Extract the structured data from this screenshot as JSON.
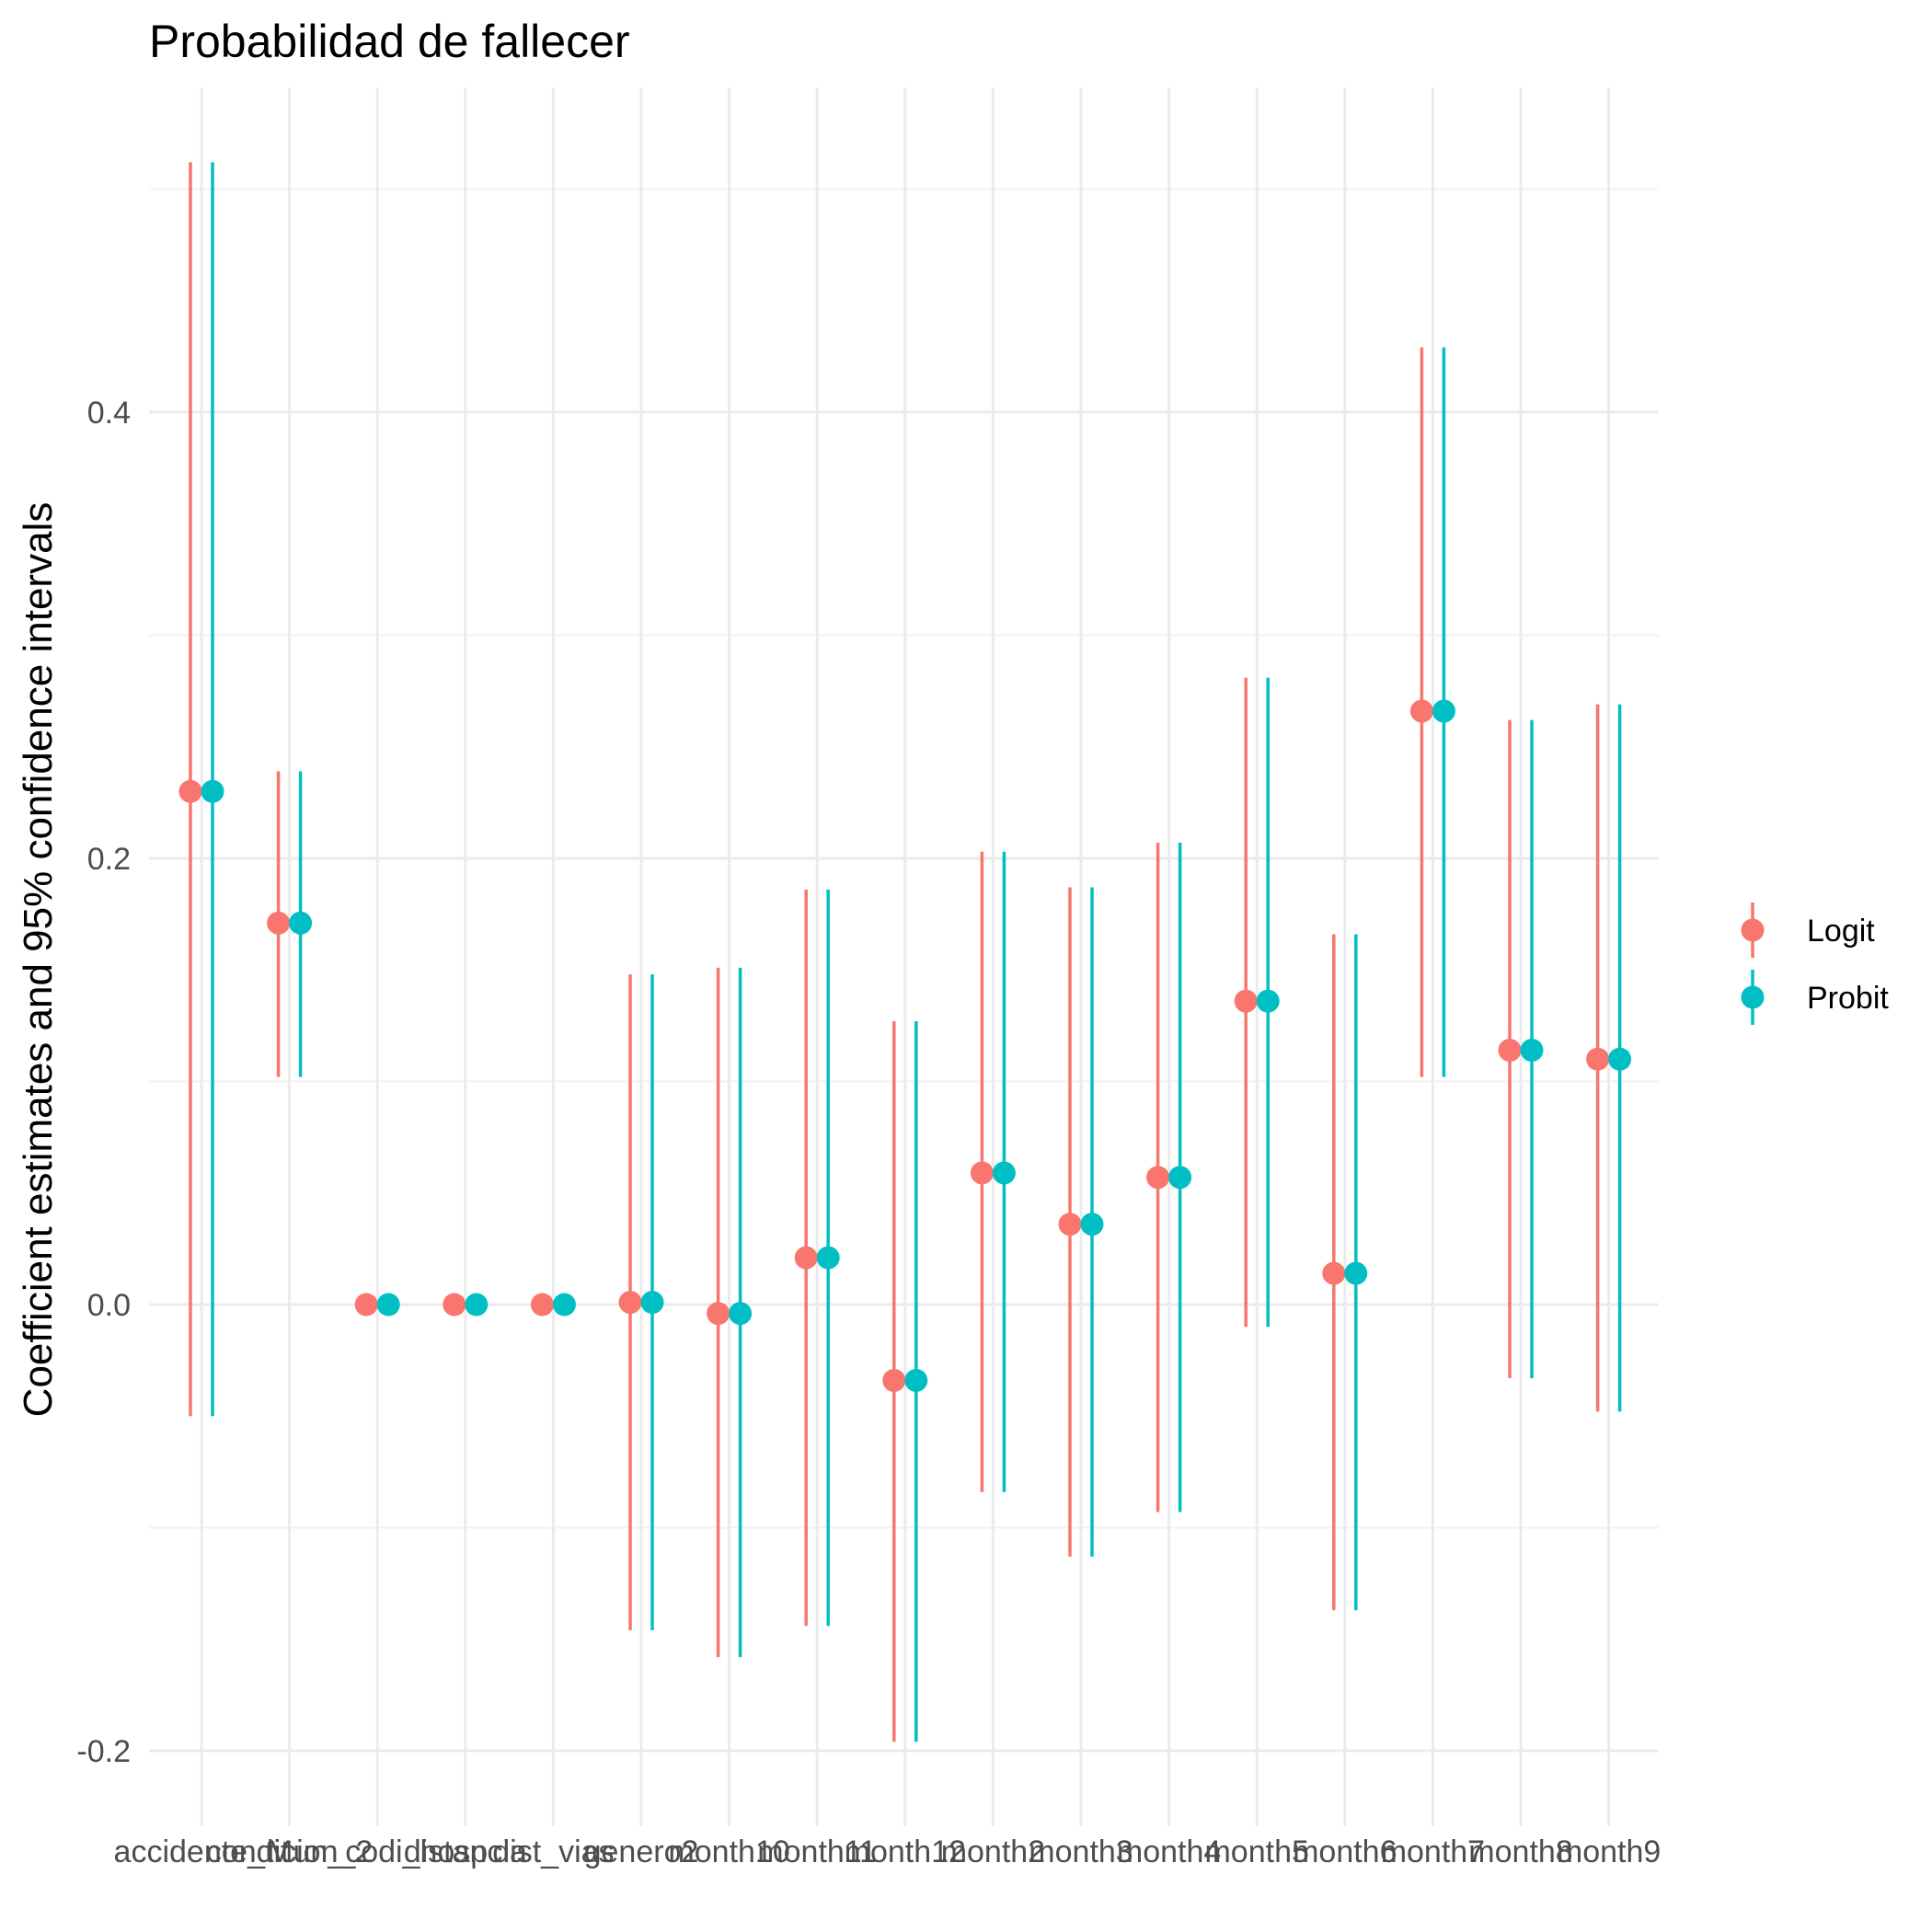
{
  "chart_data": {
    "type": "scatter",
    "subtype": "coefficient-plot-with-error-bars",
    "title": "Probabilidad de fallecer",
    "xlabel": "",
    "ylabel": "Coefficient estimates and 95% confidence intervals",
    "ylim": [
      -0.23,
      0.53
    ],
    "y_ticks": [
      -0.2,
      0.0,
      0.2,
      0.4
    ],
    "y_tick_labels": [
      "-0.2",
      "0.0",
      "0.2",
      "0.4"
    ],
    "grid": true,
    "legend_position": "right",
    "categories": [
      "accidente_tit",
      "condicion_2",
      "Mun_codi_hosp",
      "distancia",
      "dist_vias",
      "genero2",
      "month10",
      "month11",
      "month12",
      "month2",
      "month3",
      "month4",
      "month5",
      "month6",
      "month7",
      "month8",
      "month9"
    ],
    "series": [
      {
        "name": "Logit",
        "color": "#f8766d",
        "values": [
          0.23,
          0.171,
          0.0,
          0.0,
          0.0,
          0.001,
          -0.004,
          0.021,
          -0.034,
          0.059,
          0.036,
          0.057,
          0.136,
          0.014,
          0.266,
          0.114,
          0.11
        ],
        "lower": [
          -0.05,
          0.102,
          0.0,
          0.0,
          0.0,
          -0.146,
          -0.158,
          -0.144,
          -0.196,
          -0.084,
          -0.113,
          -0.093,
          -0.01,
          -0.137,
          0.102,
          -0.033,
          -0.048
        ],
        "upper": [
          0.512,
          0.239,
          0.0,
          0.0,
          0.0,
          0.148,
          0.151,
          0.186,
          0.127,
          0.203,
          0.187,
          0.207,
          0.281,
          0.166,
          0.429,
          0.262,
          0.269
        ]
      },
      {
        "name": "Probit",
        "color": "#00bfc4",
        "values": [
          0.23,
          0.171,
          0.0,
          0.0,
          0.0,
          0.001,
          -0.004,
          0.021,
          -0.034,
          0.059,
          0.036,
          0.057,
          0.136,
          0.014,
          0.266,
          0.114,
          0.11
        ],
        "lower": [
          -0.05,
          0.102,
          0.0,
          0.0,
          0.0,
          -0.146,
          -0.158,
          -0.144,
          -0.196,
          -0.084,
          -0.113,
          -0.093,
          -0.01,
          -0.137,
          0.102,
          -0.033,
          -0.048
        ],
        "upper": [
          0.512,
          0.239,
          0.0,
          0.0,
          0.0,
          0.148,
          0.151,
          0.186,
          0.127,
          0.203,
          0.187,
          0.207,
          0.281,
          0.166,
          0.429,
          0.262,
          0.269
        ]
      }
    ]
  }
}
